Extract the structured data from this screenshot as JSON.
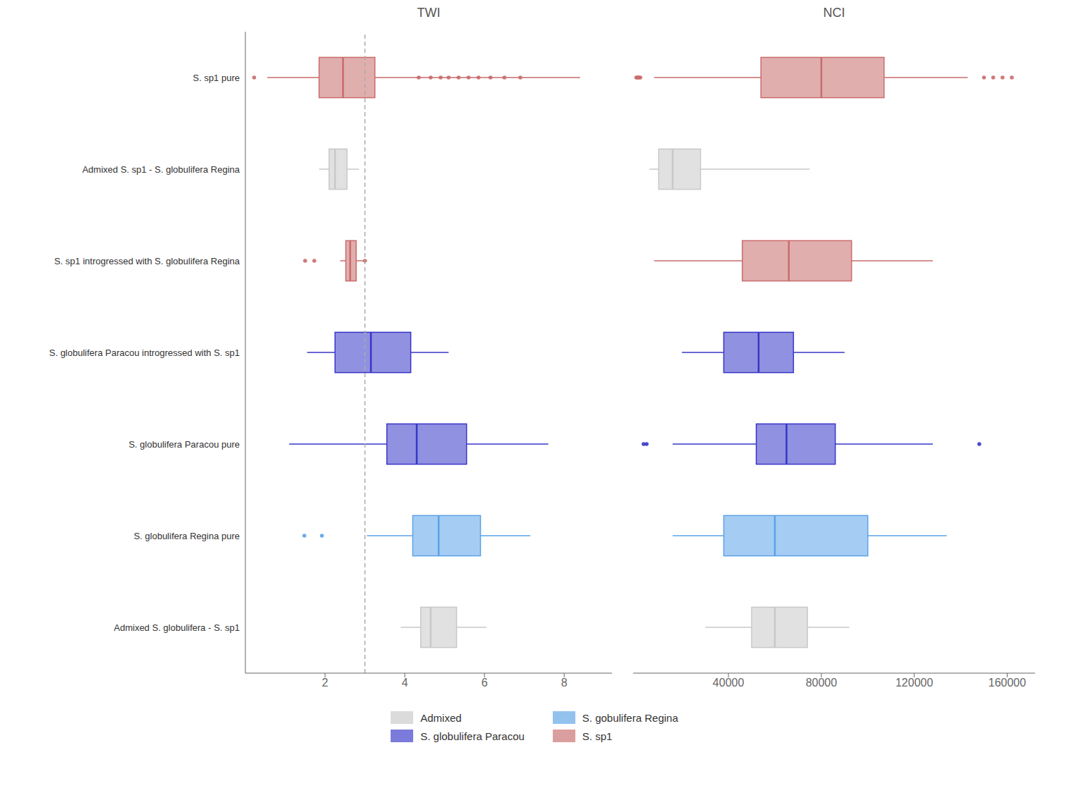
{
  "chart_data": {
    "type": "box",
    "orientation": "horizontal",
    "legend": "bottom",
    "categories": [
      "S. sp1 pure",
      "Admixed S. sp1 - S. globulifera Regina",
      "S. sp1 introgressed with S. globulifera Regina",
      "S. globulifera Paracou introgressed with S. sp1",
      "S. globulifera Paracou pure",
      "S. globulifera Regina pure",
      "Admixed S. globulifera - S. sp1"
    ],
    "colors": [
      "#C96B6B",
      "#C8C8C8",
      "#C96B6B",
      "#3636C8",
      "#3636C8",
      "#5BA3E8",
      "#C8C8C8"
    ],
    "legend_entries": [
      {
        "name": "Admixed",
        "color": "#C8C8C8"
      },
      {
        "name": "S. globulifera Paracou",
        "color": "#3636C8"
      },
      {
        "name": "S. gobulifera Regina",
        "color": "#5BA3E8"
      },
      {
        "name": "S. sp1",
        "color": "#C96B6B"
      }
    ],
    "panels": [
      {
        "title": "TWI",
        "xlim": [
          0.0,
          9.2
        ],
        "xticks": [
          2,
          4,
          6,
          8
        ],
        "reference_x": 3.0,
        "boxes": [
          {
            "whisker_low": 0.55,
            "q1": 1.85,
            "median": 2.45,
            "q3": 3.25,
            "whisker_high": 8.4,
            "outliers_low": [
              0.22
            ],
            "outliers_high": [
              4.35,
              4.65,
              4.9,
              5.1,
              5.35,
              5.6,
              5.85,
              6.15,
              6.5,
              6.9
            ]
          },
          {
            "whisker_low": 1.85,
            "q1": 2.1,
            "median": 2.25,
            "q3": 2.55,
            "whisker_high": 2.85,
            "outliers_low": [],
            "outliers_high": []
          },
          {
            "whisker_low": 2.38,
            "q1": 2.52,
            "median": 2.63,
            "q3": 2.78,
            "whisker_high": 3.05,
            "outliers_low": [
              1.5,
              1.73
            ],
            "outliers_high": [
              3.0
            ]
          },
          {
            "whisker_low": 1.55,
            "q1": 2.25,
            "median": 3.15,
            "q3": 4.15,
            "whisker_high": 5.1,
            "outliers_low": [],
            "outliers_high": []
          },
          {
            "whisker_low": 1.1,
            "q1": 3.55,
            "median": 4.3,
            "q3": 5.55,
            "whisker_high": 7.6,
            "outliers_low": [],
            "outliers_high": []
          },
          {
            "whisker_low": 3.05,
            "q1": 4.2,
            "median": 4.85,
            "q3": 5.9,
            "whisker_high": 7.15,
            "outliers_low": [
              1.48,
              1.92
            ],
            "outliers_high": []
          },
          {
            "whisker_low": 3.9,
            "q1": 4.4,
            "median": 4.65,
            "q3": 5.3,
            "whisker_high": 6.05,
            "outliers_low": [],
            "outliers_high": []
          }
        ]
      },
      {
        "title": "NCI",
        "xlim": [
          -1000,
          172000
        ],
        "xticks": [
          40000,
          80000,
          120000,
          160000
        ],
        "boxes": [
          {
            "whisker_low": 8000,
            "q1": 54000,
            "median": 80000,
            "q3": 107000,
            "whisker_high": 143000,
            "outliers_low": [
              350,
              750,
              1150,
              1600,
              2100
            ],
            "outliers_high": [
              150000,
              154000,
              158000,
              162000
            ]
          },
          {
            "whisker_low": 6000,
            "q1": 10000,
            "median": 16000,
            "q3": 28000,
            "whisker_high": 75000,
            "outliers_low": [],
            "outliers_high": []
          },
          {
            "whisker_low": 8000,
            "q1": 46000,
            "median": 66000,
            "q3": 93000,
            "whisker_high": 128000,
            "outliers_low": [],
            "outliers_high": []
          },
          {
            "whisker_low": 20000,
            "q1": 38000,
            "median": 53000,
            "q3": 68000,
            "whisker_high": 90000,
            "outliers_low": [],
            "outliers_high": []
          },
          {
            "whisker_low": 16000,
            "q1": 52000,
            "median": 65000,
            "q3": 86000,
            "whisker_high": 128000,
            "outliers_low": [
              3500,
              4800
            ],
            "outliers_high": [
              148000
            ]
          },
          {
            "whisker_low": 16000,
            "q1": 38000,
            "median": 60000,
            "q3": 100000,
            "whisker_high": 134000,
            "outliers_low": [],
            "outliers_high": []
          },
          {
            "whisker_low": 30000,
            "q1": 50000,
            "median": 60000,
            "q3": 74000,
            "whisker_high": 92000,
            "outliers_low": [],
            "outliers_high": []
          }
        ]
      }
    ]
  }
}
